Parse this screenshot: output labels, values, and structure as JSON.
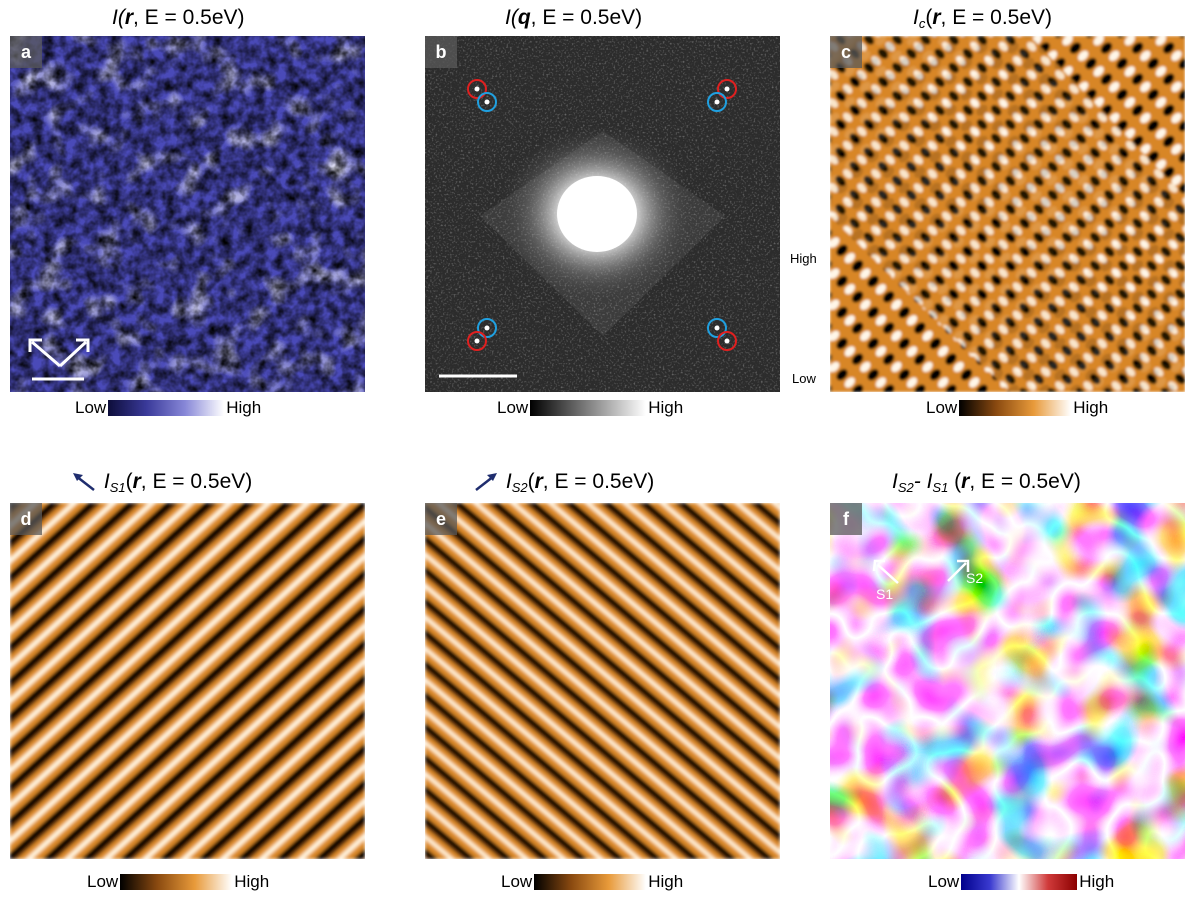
{
  "panels": [
    {
      "id": "a",
      "title_prefix": "I(",
      "title_var": "r",
      "title_suffix": ", E = 0.5eV",
      "cbar_low": "Low",
      "cbar_high": "High",
      "colormap": [
        "#0d0d3a",
        "#3a3a9a",
        "#8888d8",
        "#ffffff"
      ]
    },
    {
      "id": "b",
      "title_prefix": "I(",
      "title_var": "q",
      "title_suffix": ", E = 0.5eV",
      "cbar_low": "Low",
      "cbar_high": "High",
      "colormap": [
        "#000000",
        "#808080",
        "#ffffff"
      ]
    },
    {
      "id": "c",
      "title_prefix": "I",
      "title_sub": "c",
      "title_var": "r",
      "title_suffix": ", E = 0.5eV",
      "cbar_low": "Low",
      "cbar_high": "High",
      "side_high": "High",
      "side_low": "Low",
      "colormap": [
        "#000000",
        "#8a4a10",
        "#e89a3a",
        "#ffffff"
      ]
    },
    {
      "id": "d",
      "title_prefix": "I",
      "title_sub": "S1",
      "title_var": "r",
      "title_suffix": ", E = 0.5eV",
      "cbar_low": "Low",
      "cbar_high": "High",
      "colormap": [
        "#000000",
        "#8a4a10",
        "#e89a3a",
        "#ffffff"
      ]
    },
    {
      "id": "e",
      "title_prefix": "I",
      "title_sub": "S2",
      "title_var": "r",
      "title_suffix": ", E = 0.5eV",
      "cbar_low": "Low",
      "cbar_high": "High",
      "colormap": [
        "#000000",
        "#8a4a10",
        "#e89a3a",
        "#ffffff"
      ]
    },
    {
      "id": "f",
      "title_prefix": "I",
      "title_sub2a": "S2",
      "title_mid": "- I",
      "title_sub2b": "S1",
      "title_var": "r",
      "title_suffix": ", E = 0.5eV",
      "cbar_low": "Low",
      "cbar_high": "High",
      "annot_s1": "S1",
      "annot_s2": "S2",
      "colormap": [
        "#00008b",
        "#ffffff",
        "#8b0000"
      ]
    }
  ]
}
